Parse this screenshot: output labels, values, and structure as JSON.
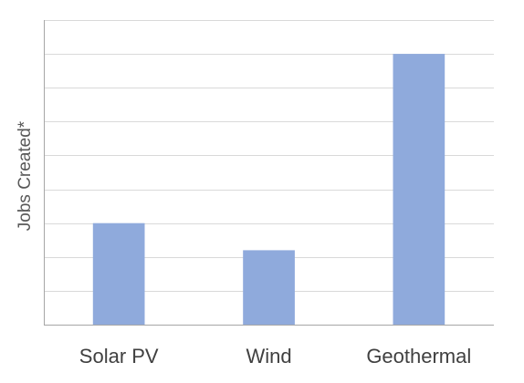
{
  "chart_data": {
    "type": "bar",
    "categories": [
      "Solar PV",
      "Wind",
      "Geothermal"
    ],
    "values": [
      3,
      2.2,
      8
    ],
    "title": "",
    "xlabel": "",
    "ylabel": "Jobs Created*",
    "ylim": [
      0,
      9
    ],
    "y_tick_step": 1,
    "y_tick_labels_shown": false,
    "grid": true,
    "legend": "none",
    "colors": {
      "bar": "#8faadc",
      "grid": "#d9d9d9",
      "axis": "#a6a6a6"
    }
  }
}
